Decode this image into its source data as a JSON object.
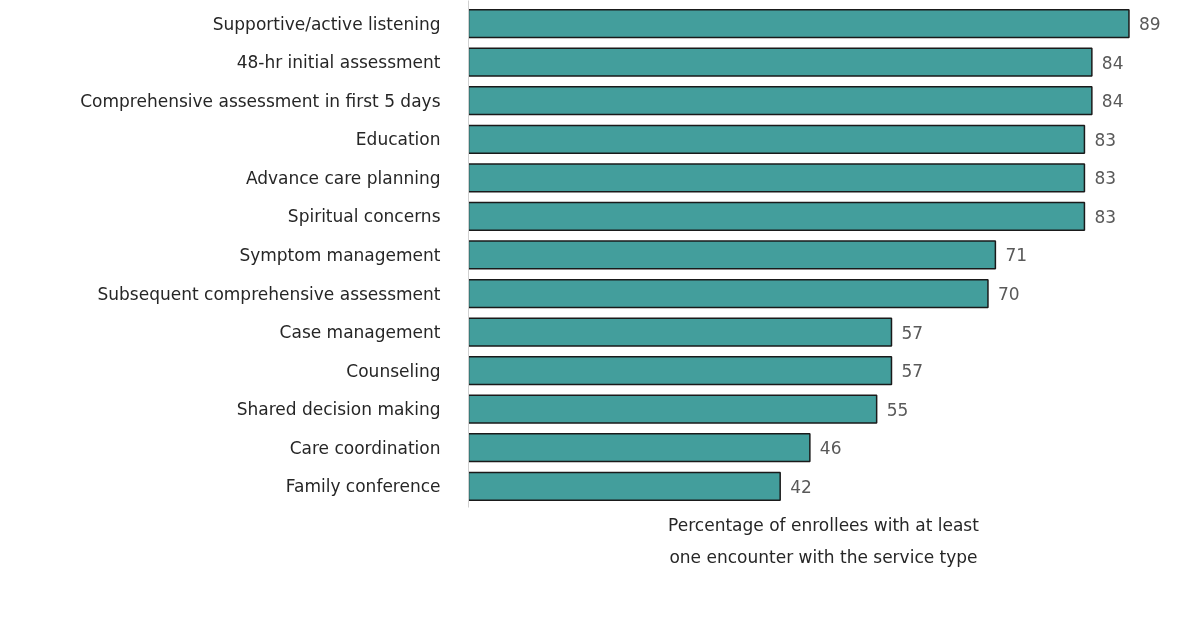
{
  "chart_data": {
    "type": "bar",
    "orientation": "horizontal",
    "xlabel": "Percentage of enrollees with at least one encounter with the service type",
    "categories": [
      "Supportive/active listening",
      "48-hr initial assessment",
      "Comprehensive assessment in first 5 days",
      "Education",
      "Advance care planning",
      "Spiritual concerns",
      "Symptom management",
      "Subsequent comprehensive assessment",
      "Case management",
      "Counseling",
      "Shared decision making",
      "Care coordination",
      "Family conference"
    ],
    "values": [
      89,
      84,
      84,
      83,
      83,
      83,
      71,
      70,
      57,
      57,
      55,
      46,
      42
    ],
    "color": "#439e9c",
    "data_labels": true,
    "tick_labels": "y"
  }
}
